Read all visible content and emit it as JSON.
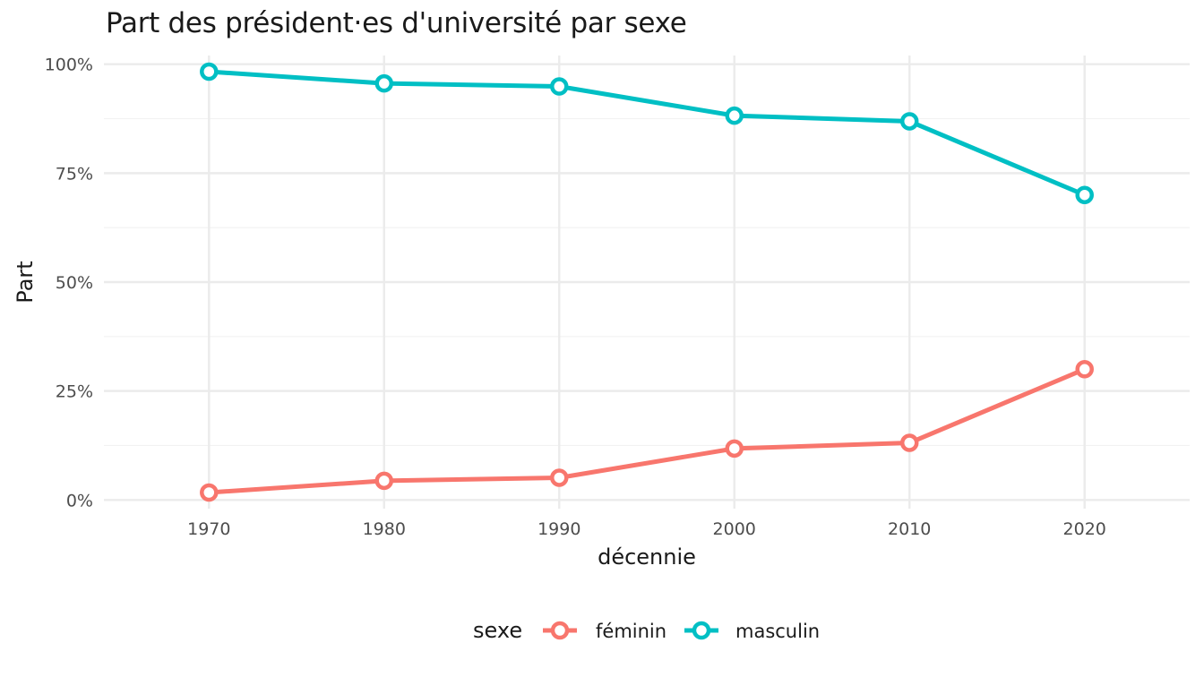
{
  "chart_data": {
    "type": "line",
    "title": "Part des président·es d'université par sexe",
    "xlabel": "décennie",
    "ylabel": "Part",
    "x": [
      1970,
      1980,
      1990,
      2000,
      2010,
      2020
    ],
    "x_tick_labels": [
      "1970",
      "1980",
      "1990",
      "2000",
      "2010",
      "2020"
    ],
    "xlim": [
      1964,
      2026
    ],
    "ylim": [
      -0.02,
      1.02
    ],
    "y_ticks": [
      0,
      0.25,
      0.5,
      0.75,
      1.0
    ],
    "y_tick_labels": [
      "0%",
      "25%",
      "50%",
      "75%",
      "100%"
    ],
    "grid": true,
    "legend": {
      "title": "sexe",
      "position": "bottom"
    },
    "series": [
      {
        "name": "féminin",
        "color": "#F8766D",
        "values": [
          0.017,
          0.044,
          0.051,
          0.118,
          0.131,
          0.3
        ]
      },
      {
        "name": "masculin",
        "color": "#00BFC4",
        "values": [
          0.983,
          0.956,
          0.949,
          0.882,
          0.869,
          0.7
        ]
      }
    ]
  }
}
